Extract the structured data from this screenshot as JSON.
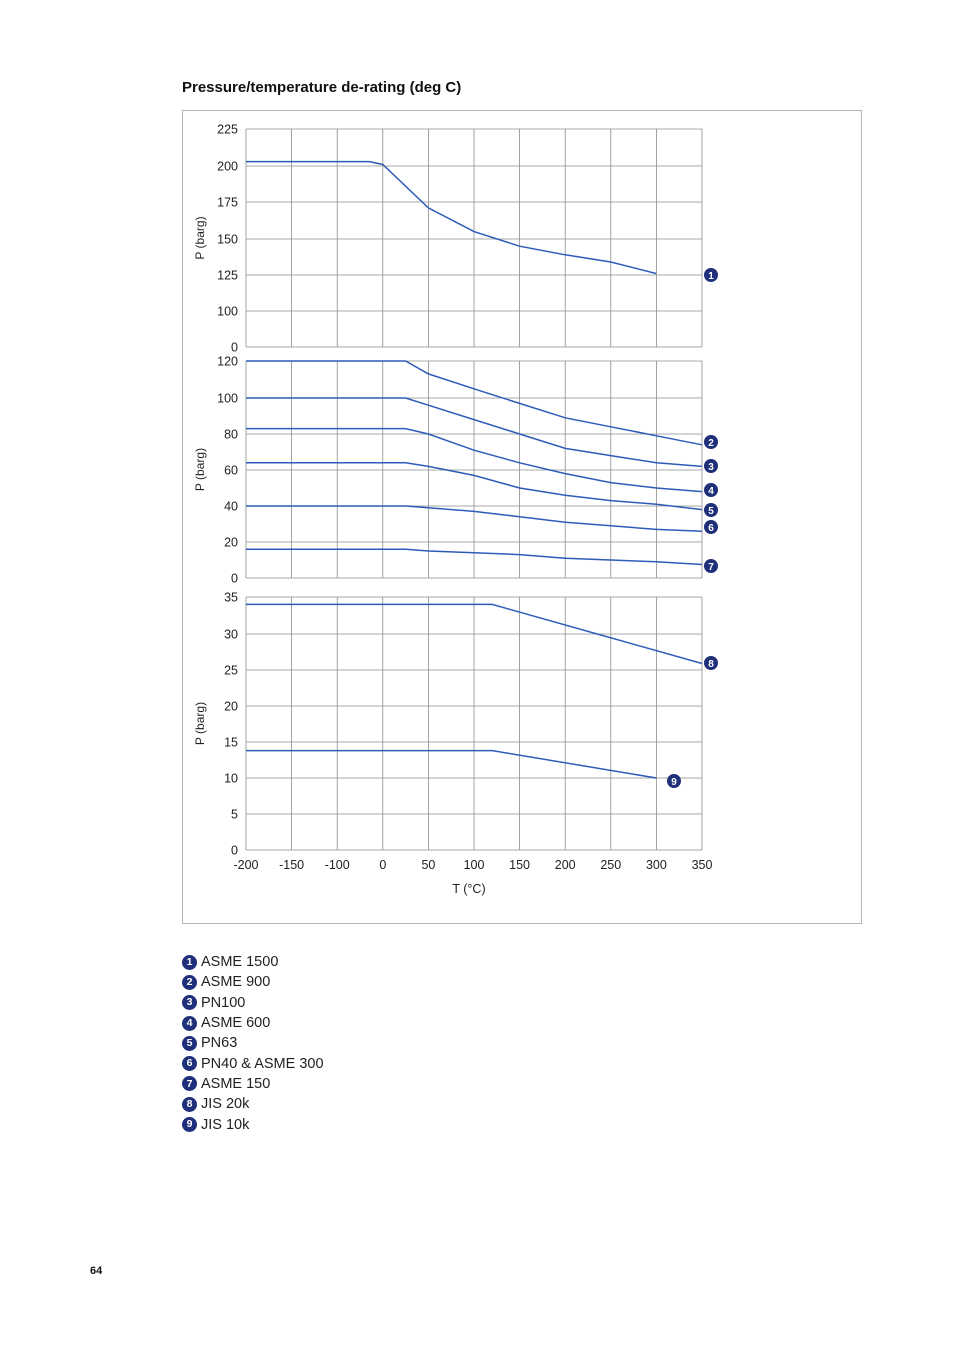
{
  "page": {
    "title": "Pressure/temperature de-rating (deg C)",
    "page_number": "64"
  },
  "colors": {
    "line": "#2e5bb8",
    "badge": "#1f2f7a",
    "grid": "#8c8c8c",
    "frame": "#b5b5b5"
  },
  "chart_data": [
    {
      "type": "line",
      "id": "top",
      "ylabel": "P (barg)",
      "xlabel": "",
      "y_ticks": [
        "0",
        "100",
        "125",
        "150",
        "175",
        "200",
        "225"
      ],
      "x_ticks": [
        "-200",
        "-150",
        "-100",
        "0",
        "50",
        "100",
        "150",
        "200",
        "250",
        "300",
        "350"
      ],
      "series": [
        {
          "name": "ASME 1500",
          "marker": "1",
          "points": [
            [
              -200,
              203
            ],
            [
              -29,
              203
            ],
            [
              0,
              201
            ],
            [
              50,
              171
            ],
            [
              100,
              155
            ],
            [
              150,
              145
            ],
            [
              200,
              139
            ],
            [
              250,
              134
            ],
            [
              300,
              126
            ]
          ]
        }
      ]
    },
    {
      "type": "line",
      "id": "middle",
      "ylabel": "P (barg)",
      "xlabel": "",
      "y_ticks": [
        "0",
        "20",
        "40",
        "60",
        "80",
        "100",
        "120"
      ],
      "x_ticks": [
        "-200",
        "-150",
        "-100",
        "0",
        "50",
        "100",
        "150",
        "200",
        "250",
        "300",
        "350"
      ],
      "series": [
        {
          "name": "ASME 900",
          "marker": "2",
          "points": [
            [
              -200,
              121
            ],
            [
              25,
              120
            ],
            [
              50,
              113
            ],
            [
              100,
              105
            ],
            [
              150,
              97
            ],
            [
              200,
              89
            ],
            [
              250,
              84
            ],
            [
              300,
              79
            ],
            [
              350,
              74
            ]
          ]
        },
        {
          "name": "PN100",
          "marker": "3",
          "points": [
            [
              -200,
              100
            ],
            [
              25,
              100
            ],
            [
              50,
              96
            ],
            [
              100,
              88
            ],
            [
              150,
              80
            ],
            [
              200,
              72
            ],
            [
              250,
              68
            ],
            [
              300,
              64
            ],
            [
              350,
              62
            ]
          ]
        },
        {
          "name": "ASME 600",
          "marker": "4",
          "points": [
            [
              -200,
              83
            ],
            [
              25,
              83
            ],
            [
              50,
              80
            ],
            [
              100,
              71
            ],
            [
              150,
              64
            ],
            [
              200,
              58
            ],
            [
              250,
              53
            ],
            [
              300,
              50
            ],
            [
              350,
              48
            ]
          ]
        },
        {
          "name": "PN63",
          "marker": "5",
          "points": [
            [
              -200,
              64
            ],
            [
              25,
              64
            ],
            [
              50,
              62
            ],
            [
              100,
              57
            ],
            [
              150,
              50
            ],
            [
              200,
              46
            ],
            [
              250,
              43
            ],
            [
              300,
              41
            ],
            [
              350,
              38
            ]
          ]
        },
        {
          "name": "PN40 & ASME  300",
          "marker": "6",
          "points": [
            [
              -200,
              40
            ],
            [
              25,
              40
            ],
            [
              50,
              39
            ],
            [
              100,
              37
            ],
            [
              150,
              34
            ],
            [
              200,
              31
            ],
            [
              250,
              29
            ],
            [
              300,
              27
            ],
            [
              350,
              26
            ]
          ]
        },
        {
          "name": "ASME 150",
          "marker": "7",
          "points": [
            [
              -200,
              16
            ],
            [
              25,
              16
            ],
            [
              50,
              15
            ],
            [
              100,
              14
            ],
            [
              150,
              13
            ],
            [
              200,
              11
            ],
            [
              250,
              10
            ],
            [
              300,
              9
            ],
            [
              350,
              7.5
            ]
          ]
        }
      ]
    },
    {
      "type": "line",
      "id": "bottom",
      "ylabel": "P (barg)",
      "xlabel": "T (°C)",
      "y_ticks": [
        "0",
        "5",
        "10",
        "15",
        "20",
        "25",
        "30",
        "35"
      ],
      "x_ticks": [
        "-200",
        "-150",
        "-100",
        "0",
        "50",
        "100",
        "150",
        "200",
        "250",
        "300",
        "350"
      ],
      "series": [
        {
          "name": "JIS 20k",
          "marker": "8",
          "points": [
            [
              -200,
              34
            ],
            [
              120,
              34
            ],
            [
              350,
              25.9
            ]
          ]
        },
        {
          "name": "JIS 10k",
          "marker": "9",
          "points": [
            [
              -200,
              13.8
            ],
            [
              120,
              13.8
            ],
            [
              300,
              10
            ]
          ]
        }
      ]
    }
  ],
  "legend": [
    {
      "marker": "1",
      "label": "ASME 1500"
    },
    {
      "marker": "2",
      "label": "ASME 900"
    },
    {
      "marker": "3",
      "label": "PN100"
    },
    {
      "marker": "4",
      "label": "ASME 600"
    },
    {
      "marker": "5",
      "label": "PN63"
    },
    {
      "marker": "6",
      "label": "PN40 & ASME  300"
    },
    {
      "marker": "7",
      "label": "ASME 150"
    },
    {
      "marker": "8",
      "label": "JIS 20k"
    },
    {
      "marker": "9",
      "label": "JIS 10k"
    }
  ]
}
